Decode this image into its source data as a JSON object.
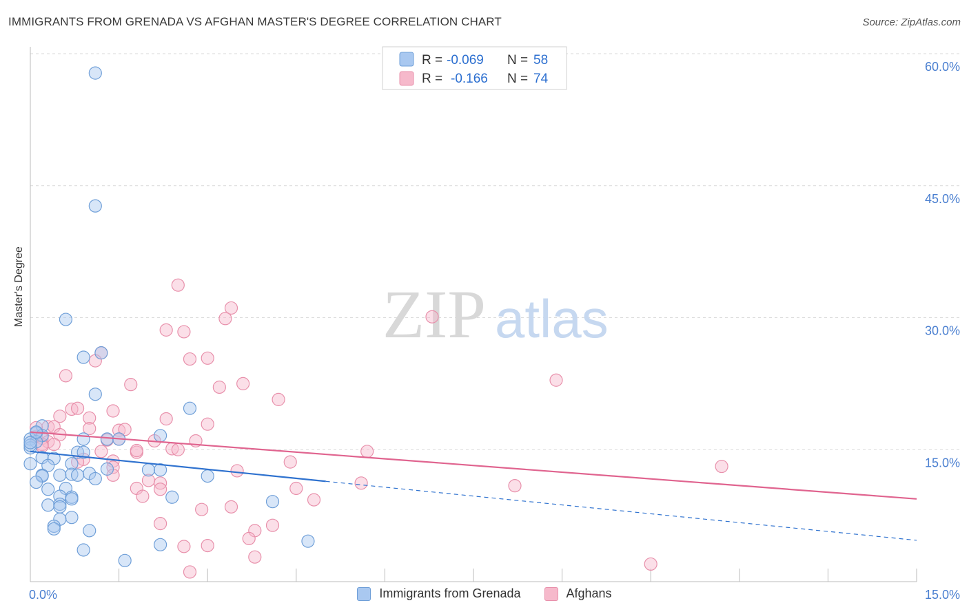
{
  "title": "IMMIGRANTS FROM GRENADA VS AFGHAN MASTER'S DEGREE CORRELATION CHART",
  "source": "Source: ZipAtlas.com",
  "watermark": {
    "zip": "ZIP",
    "atlas": "atlas"
  },
  "colors": {
    "blue_fill": "#a9c8f0",
    "blue_stroke": "#6f9fd8",
    "blue_line": "#2f72cf",
    "pink_fill": "#f6b9cb",
    "pink_stroke": "#e890ab",
    "pink_line": "#e0648f",
    "axis_text": "#4a7fd0",
    "grid": "#d9d9d9"
  },
  "legend_top": [
    {
      "r_label": "R =",
      "r_value": "-0.069",
      "n_label": "N =",
      "n_value": "58"
    },
    {
      "r_label": "R =",
      "r_value": "-0.166",
      "n_label": "N =",
      "n_value": "74"
    }
  ],
  "legend_bottom": [
    "Immigrants from Grenada",
    "Afghans"
  ],
  "chart_data": {
    "type": "scatter",
    "title": "IMMIGRANTS FROM GRENADA VS AFGHAN MASTER'S DEGREE CORRELATION CHART",
    "xlabel": "",
    "ylabel": "Master's Degree",
    "xlim": [
      0,
      15
    ],
    "ylim": [
      0,
      60
    ],
    "x_tick_labels": [
      "0.0%",
      "15.0%"
    ],
    "y_tick_labels": [
      "15.0%",
      "30.0%",
      "45.0%",
      "60.0%"
    ],
    "y_ticks": [
      15,
      30,
      45,
      60
    ],
    "x_minor_ticks": [
      1.5,
      3,
      4.5,
      6,
      7.5,
      9,
      10.5,
      12,
      13.5,
      15
    ],
    "series": [
      {
        "name": "Immigrants from Grenada",
        "r": -0.069,
        "n": 58,
        "trend": {
          "x0": 0,
          "y0": 14.8,
          "x1": 5.0,
          "y1": 11.4,
          "dash_to_x": 15,
          "dash_to_y": 4.7
        },
        "points": [
          [
            1.1,
            57.8
          ],
          [
            1.1,
            42.7
          ],
          [
            0.6,
            29.8
          ],
          [
            0.9,
            25.5
          ],
          [
            1.2,
            26.0
          ],
          [
            1.1,
            21.3
          ],
          [
            2.7,
            19.7
          ],
          [
            0.2,
            17.7
          ],
          [
            0.1,
            16.9
          ],
          [
            0.0,
            16.2
          ],
          [
            0.2,
            16.6
          ],
          [
            0.1,
            15.9
          ],
          [
            0.0,
            15.2
          ],
          [
            0.9,
            16.2
          ],
          [
            1.3,
            16.2
          ],
          [
            1.5,
            16.2
          ],
          [
            2.2,
            16.6
          ],
          [
            0.8,
            14.7
          ],
          [
            0.9,
            14.7
          ],
          [
            0.2,
            14.1
          ],
          [
            0.4,
            14.0
          ],
          [
            0.0,
            13.4
          ],
          [
            0.3,
            13.2
          ],
          [
            0.7,
            13.4
          ],
          [
            1.3,
            12.8
          ],
          [
            1.0,
            12.3
          ],
          [
            0.2,
            12.1
          ],
          [
            0.5,
            12.1
          ],
          [
            0.7,
            12.2
          ],
          [
            0.8,
            12.1
          ],
          [
            0.2,
            12.0
          ],
          [
            1.1,
            11.7
          ],
          [
            0.1,
            11.3
          ],
          [
            2.0,
            12.7
          ],
          [
            2.2,
            12.7
          ],
          [
            3.0,
            12.0
          ],
          [
            0.3,
            10.5
          ],
          [
            0.6,
            10.6
          ],
          [
            0.5,
            9.7
          ],
          [
            0.7,
            9.6
          ],
          [
            2.4,
            9.6
          ],
          [
            4.1,
            9.1
          ],
          [
            0.3,
            8.7
          ],
          [
            0.5,
            8.8
          ],
          [
            0.5,
            8.5
          ],
          [
            0.7,
            7.3
          ],
          [
            0.5,
            7.1
          ],
          [
            0.4,
            6.3
          ],
          [
            0.4,
            6.0
          ],
          [
            1.0,
            5.8
          ],
          [
            0.9,
            3.6
          ],
          [
            2.2,
            4.2
          ],
          [
            4.7,
            4.6
          ],
          [
            1.6,
            2.4
          ],
          [
            0.0,
            15.5
          ],
          [
            0.0,
            15.8
          ],
          [
            0.1,
            17.0
          ],
          [
            0.7,
            9.4
          ]
        ]
      },
      {
        "name": "Afghans",
        "r": -0.166,
        "n": 74,
        "trend": {
          "x0": 0,
          "y0": 17.0,
          "x1": 15,
          "y1": 9.4
        },
        "points": [
          [
            2.5,
            33.7
          ],
          [
            3.4,
            31.1
          ],
          [
            3.3,
            29.9
          ],
          [
            6.8,
            30.1
          ],
          [
            2.3,
            28.6
          ],
          [
            2.6,
            28.4
          ],
          [
            1.2,
            26.0
          ],
          [
            1.1,
            25.1
          ],
          [
            2.7,
            25.3
          ],
          [
            3.0,
            25.4
          ],
          [
            0.6,
            23.4
          ],
          [
            1.7,
            22.4
          ],
          [
            3.2,
            22.1
          ],
          [
            3.6,
            22.5
          ],
          [
            8.9,
            22.9
          ],
          [
            4.2,
            20.7
          ],
          [
            0.7,
            19.6
          ],
          [
            0.8,
            19.7
          ],
          [
            1.4,
            19.4
          ],
          [
            0.5,
            18.8
          ],
          [
            1.0,
            18.6
          ],
          [
            2.3,
            18.5
          ],
          [
            3.0,
            17.9
          ],
          [
            0.3,
            17.6
          ],
          [
            0.4,
            17.6
          ],
          [
            1.0,
            17.4
          ],
          [
            1.5,
            17.2
          ],
          [
            1.6,
            17.3
          ],
          [
            0.5,
            16.7
          ],
          [
            0.1,
            16.5
          ],
          [
            0.2,
            16.3
          ],
          [
            0.3,
            15.9
          ],
          [
            0.4,
            15.6
          ],
          [
            0.2,
            15.6
          ],
          [
            1.3,
            16.1
          ],
          [
            1.5,
            16.2
          ],
          [
            2.1,
            16.0
          ],
          [
            2.8,
            16.0
          ],
          [
            2.4,
            15.1
          ],
          [
            2.5,
            15.0
          ],
          [
            1.8,
            14.7
          ],
          [
            0.9,
            13.9
          ],
          [
            1.4,
            13.7
          ],
          [
            1.2,
            14.8
          ],
          [
            1.8,
            14.9
          ],
          [
            5.7,
            14.8
          ],
          [
            4.4,
            13.6
          ],
          [
            1.4,
            13.0
          ],
          [
            0.8,
            13.6
          ],
          [
            3.5,
            12.6
          ],
          [
            1.4,
            12.1
          ],
          [
            11.7,
            13.1
          ],
          [
            2.0,
            11.5
          ],
          [
            2.2,
            11.2
          ],
          [
            5.6,
            11.2
          ],
          [
            8.2,
            10.9
          ],
          [
            4.5,
            10.6
          ],
          [
            1.8,
            10.6
          ],
          [
            2.2,
            10.5
          ],
          [
            1.9,
            9.7
          ],
          [
            4.8,
            9.3
          ],
          [
            2.9,
            8.2
          ],
          [
            3.4,
            8.5
          ],
          [
            2.2,
            6.6
          ],
          [
            3.8,
            5.8
          ],
          [
            4.1,
            6.4
          ],
          [
            3.7,
            4.9
          ],
          [
            2.6,
            4.0
          ],
          [
            3.0,
            4.1
          ],
          [
            3.8,
            2.8
          ],
          [
            2.7,
            1.1
          ],
          [
            10.5,
            2.0
          ],
          [
            0.1,
            17.5
          ],
          [
            0.2,
            15.4
          ]
        ]
      }
    ]
  }
}
